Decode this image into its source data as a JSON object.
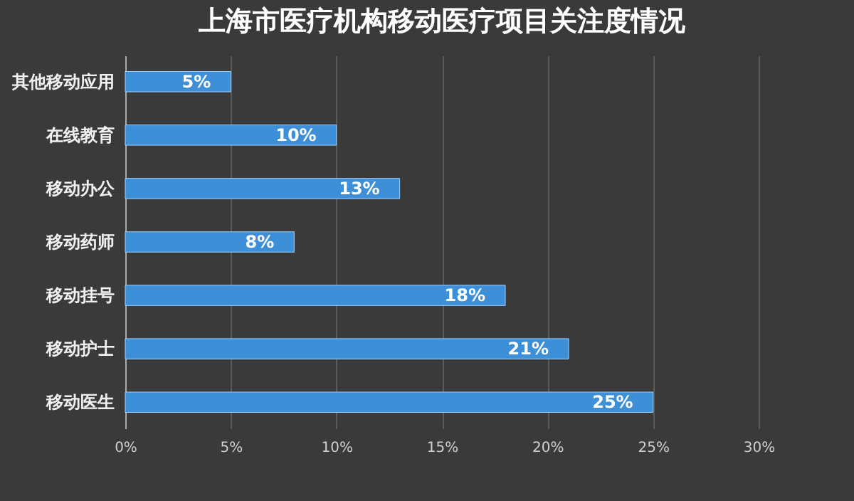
{
  "chart_data": {
    "type": "bar",
    "orientation": "horizontal",
    "title": "上海市医疗机构移动医疗项目关注度情况",
    "categories": [
      "其他移动应用",
      "在线教育",
      "移动办公",
      "移动药师",
      "移动挂号",
      "移动护士",
      "移动医生"
    ],
    "values": [
      5,
      10,
      13,
      8,
      18,
      21,
      25
    ],
    "value_labels": [
      "5%",
      "10%",
      "13%",
      "8%",
      "18%",
      "21%",
      "25%"
    ],
    "color": "#3d8fd8",
    "xlim": [
      0,
      30
    ],
    "xticks": [
      {
        "value": 0,
        "label": "0%"
      },
      {
        "value": 5,
        "label": "5%"
      },
      {
        "value": 10,
        "label": "10%"
      },
      {
        "value": 15,
        "label": "15%"
      },
      {
        "value": 20,
        "label": "20%"
      },
      {
        "value": 25,
        "label": "25%"
      },
      {
        "value": 30,
        "label": "30%"
      }
    ],
    "grid": "x"
  }
}
